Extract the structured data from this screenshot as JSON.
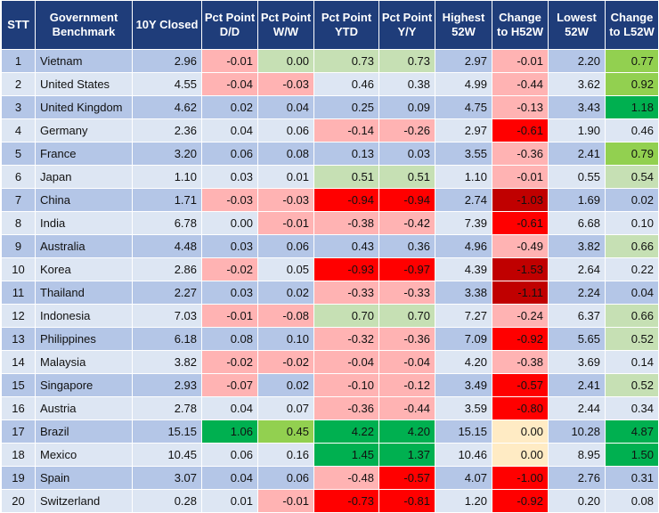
{
  "headers": [
    "STT",
    "Government Benchmark",
    "10Y Closed",
    "Pct Point D/D",
    "Pct Point W/W",
    "Pct Point YTD",
    "Pct Point Y/Y",
    "Highest 52W",
    "Change to H52W",
    "Lowest 52W",
    "Change to L52W"
  ],
  "colors": {
    "header_bg": "#1f3d7a",
    "row_odd": "#b4c6e7",
    "row_even": "#dde6f3",
    "light_red": "#ffb3b3",
    "red": "#ff0000",
    "dark_red": "#c00000",
    "light_green": "#c6e0b4",
    "mid_green": "#92d050",
    "green": "#00b050",
    "cream": "#ffebc4"
  },
  "rows": [
    {
      "stt": "1",
      "name": "Vietnam",
      "closed": "2.96",
      "dd": "-0.01",
      "ww": "0.00",
      "ytd": "0.73",
      "yy": "0.73",
      "high": "2.97",
      "ch": "-0.01",
      "low": "2.20",
      "cl": "0.77"
    },
    {
      "stt": "2",
      "name": "United States",
      "closed": "4.55",
      "dd": "-0.04",
      "ww": "-0.03",
      "ytd": "0.46",
      "yy": "0.38",
      "high": "4.99",
      "ch": "-0.44",
      "low": "3.62",
      "cl": "0.92"
    },
    {
      "stt": "3",
      "name": "United Kingdom",
      "closed": "4.62",
      "dd": "0.02",
      "ww": "0.04",
      "ytd": "0.25",
      "yy": "0.09",
      "high": "4.75",
      "ch": "-0.13",
      "low": "3.43",
      "cl": "1.18"
    },
    {
      "stt": "4",
      "name": "Germany",
      "closed": "2.36",
      "dd": "0.04",
      "ww": "0.06",
      "ytd": "-0.14",
      "yy": "-0.26",
      "high": "2.97",
      "ch": "-0.61",
      "low": "1.90",
      "cl": "0.46"
    },
    {
      "stt": "5",
      "name": "France",
      "closed": "3.20",
      "dd": "0.06",
      "ww": "0.08",
      "ytd": "0.13",
      "yy": "0.03",
      "high": "3.55",
      "ch": "-0.36",
      "low": "2.41",
      "cl": "0.79"
    },
    {
      "stt": "6",
      "name": "Japan",
      "closed": "1.10",
      "dd": "0.03",
      "ww": "0.01",
      "ytd": "0.51",
      "yy": "0.51",
      "high": "1.10",
      "ch": "-0.01",
      "low": "0.55",
      "cl": "0.54"
    },
    {
      "stt": "7",
      "name": "China",
      "closed": "1.71",
      "dd": "-0.03",
      "ww": "-0.03",
      "ytd": "-0.94",
      "yy": "-0.94",
      "high": "2.74",
      "ch": "-1.03",
      "low": "1.69",
      "cl": "0.02"
    },
    {
      "stt": "8",
      "name": "India",
      "closed": "6.78",
      "dd": "0.00",
      "ww": "-0.01",
      "ytd": "-0.38",
      "yy": "-0.42",
      "high": "7.39",
      "ch": "-0.61",
      "low": "6.68",
      "cl": "0.10"
    },
    {
      "stt": "9",
      "name": "Australia",
      "closed": "4.48",
      "dd": "0.03",
      "ww": "0.06",
      "ytd": "0.43",
      "yy": "0.36",
      "high": "4.96",
      "ch": "-0.49",
      "low": "3.82",
      "cl": "0.66"
    },
    {
      "stt": "10",
      "name": "Korea",
      "closed": "2.86",
      "dd": "-0.02",
      "ww": "0.05",
      "ytd": "-0.93",
      "yy": "-0.97",
      "high": "4.39",
      "ch": "-1.53",
      "low": "2.64",
      "cl": "0.22"
    },
    {
      "stt": "11",
      "name": "Thailand",
      "closed": "2.27",
      "dd": "0.03",
      "ww": "0.02",
      "ytd": "-0.33",
      "yy": "-0.33",
      "high": "3.38",
      "ch": "-1.11",
      "low": "2.24",
      "cl": "0.04"
    },
    {
      "stt": "12",
      "name": "Indonesia",
      "closed": "7.03",
      "dd": "-0.01",
      "ww": "-0.08",
      "ytd": "0.70",
      "yy": "0.70",
      "high": "7.27",
      "ch": "-0.24",
      "low": "6.37",
      "cl": "0.66"
    },
    {
      "stt": "13",
      "name": "Philippines",
      "closed": "6.18",
      "dd": "0.08",
      "ww": "0.10",
      "ytd": "-0.32",
      "yy": "-0.36",
      "high": "7.09",
      "ch": "-0.92",
      "low": "5.65",
      "cl": "0.52"
    },
    {
      "stt": "14",
      "name": "Malaysia",
      "closed": "3.82",
      "dd": "-0.02",
      "ww": "-0.02",
      "ytd": "-0.04",
      "yy": "-0.04",
      "high": "4.20",
      "ch": "-0.38",
      "low": "3.69",
      "cl": "0.14"
    },
    {
      "stt": "15",
      "name": "Singapore",
      "closed": "2.93",
      "dd": "-0.07",
      "ww": "0.02",
      "ytd": "-0.10",
      "yy": "-0.12",
      "high": "3.49",
      "ch": "-0.57",
      "low": "2.41",
      "cl": "0.52"
    },
    {
      "stt": "16",
      "name": "Austria",
      "closed": "2.78",
      "dd": "0.04",
      "ww": "0.07",
      "ytd": "-0.36",
      "yy": "-0.44",
      "high": "3.59",
      "ch": "-0.80",
      "low": "2.44",
      "cl": "0.34"
    },
    {
      "stt": "17",
      "name": "Brazil",
      "closed": "15.15",
      "dd": "1.06",
      "ww": "0.45",
      "ytd": "4.22",
      "yy": "4.20",
      "high": "15.15",
      "ch": "0.00",
      "low": "10.28",
      "cl": "4.87"
    },
    {
      "stt": "18",
      "name": "Mexico",
      "closed": "10.45",
      "dd": "0.06",
      "ww": "0.16",
      "ytd": "1.45",
      "yy": "1.37",
      "high": "10.46",
      "ch": "0.00",
      "low": "8.95",
      "cl": "1.50"
    },
    {
      "stt": "19",
      "name": "Spain",
      "closed": "3.07",
      "dd": "0.04",
      "ww": "0.06",
      "ytd": "-0.48",
      "yy": "-0.57",
      "high": "4.07",
      "ch": "-1.00",
      "low": "2.76",
      "cl": "0.31"
    },
    {
      "stt": "20",
      "name": "Switzerland",
      "closed": "0.28",
      "dd": "0.01",
      "ww": "-0.01",
      "ytd": "-0.73",
      "yy": "-0.81",
      "high": "1.20",
      "ch": "-0.92",
      "low": "0.20",
      "cl": "0.08"
    }
  ],
  "cell_fills": {
    "dd": [
      "light_red",
      "light_red",
      "plain",
      "plain",
      "plain",
      "plain",
      "light_red",
      "plain",
      "plain",
      "light_red",
      "plain",
      "light_red",
      "plain",
      "light_red",
      "light_red",
      "plain",
      "green",
      "plain",
      "plain",
      "plain"
    ],
    "ww": [
      "light_green",
      "light_red",
      "plain",
      "plain",
      "plain",
      "plain",
      "light_red",
      "light_red",
      "plain",
      "plain",
      "plain",
      "light_red",
      "plain",
      "light_red",
      "plain",
      "plain",
      "mid_green",
      "plain",
      "plain",
      "light_red"
    ],
    "ytd": [
      "light_green",
      "plain",
      "plain",
      "light_red",
      "plain",
      "light_green",
      "red",
      "light_red",
      "plain",
      "red",
      "light_red",
      "light_green",
      "light_red",
      "light_red",
      "light_red",
      "light_red",
      "green",
      "green",
      "light_red",
      "red"
    ],
    "yy": [
      "light_green",
      "plain",
      "plain",
      "light_red",
      "plain",
      "light_green",
      "red",
      "light_red",
      "plain",
      "red",
      "light_red",
      "light_green",
      "light_red",
      "light_red",
      "light_red",
      "light_red",
      "green",
      "green",
      "red",
      "red"
    ],
    "ch": [
      "light_red",
      "light_red",
      "light_red",
      "red",
      "light_red",
      "light_red",
      "dark_red",
      "red",
      "light_red",
      "dark_red",
      "dark_red",
      "light_red",
      "red",
      "light_red",
      "red",
      "red",
      "cream",
      "cream",
      "red",
      "red"
    ],
    "cl": [
      "mid_green",
      "mid_green",
      "green",
      "plain",
      "mid_green",
      "light_green",
      "plain",
      "plain",
      "light_green",
      "plain",
      "plain",
      "light_green",
      "light_green",
      "plain",
      "light_green",
      "plain",
      "green",
      "green",
      "plain",
      "plain"
    ]
  }
}
